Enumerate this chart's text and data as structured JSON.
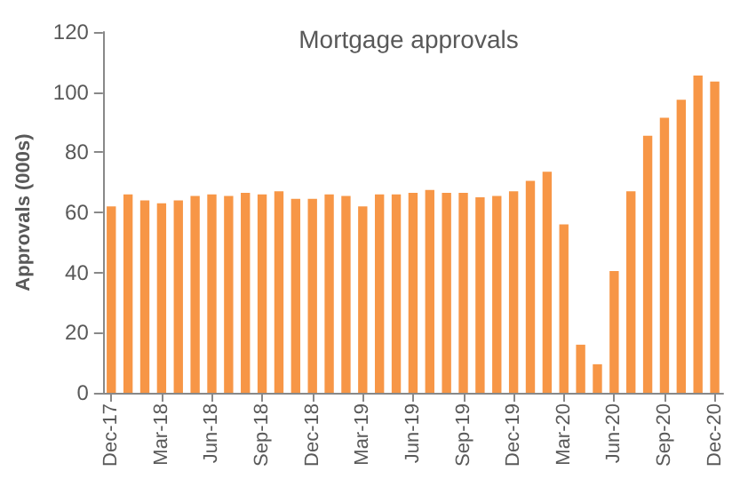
{
  "chart_data": {
    "type": "bar",
    "title": "Mortgage approvals",
    "ylabel": "Approvals (000s)",
    "categories": [
      "Dec-17",
      null,
      null,
      "Mar-18",
      null,
      null,
      "Jun-18",
      null,
      null,
      "Sep-18",
      null,
      null,
      "Dec-18",
      null,
      null,
      "Mar-19",
      null,
      null,
      "Jun-19",
      null,
      null,
      "Sep-19",
      null,
      null,
      "Dec-19",
      null,
      null,
      "Mar-20",
      null,
      null,
      "Jun-20",
      null,
      null,
      "Sep-20",
      null,
      null,
      "Dec-20"
    ],
    "values": [
      62,
      66,
      64,
      63,
      64,
      65.5,
      66,
      65.5,
      66.5,
      66,
      67,
      64.5,
      64.5,
      66,
      65.5,
      62,
      66,
      66,
      66.5,
      67.5,
      66.5,
      66.5,
      65,
      65.5,
      67,
      70.5,
      73.5,
      56,
      16,
      9.5,
      40.5,
      67,
      85.5,
      91.5,
      97.5,
      105.5,
      103.5
    ],
    "color": "#f79646",
    "ylim": [
      0,
      120
    ],
    "yticks": [
      0,
      20,
      40,
      60,
      80,
      100,
      120
    ],
    "grid": false
  }
}
